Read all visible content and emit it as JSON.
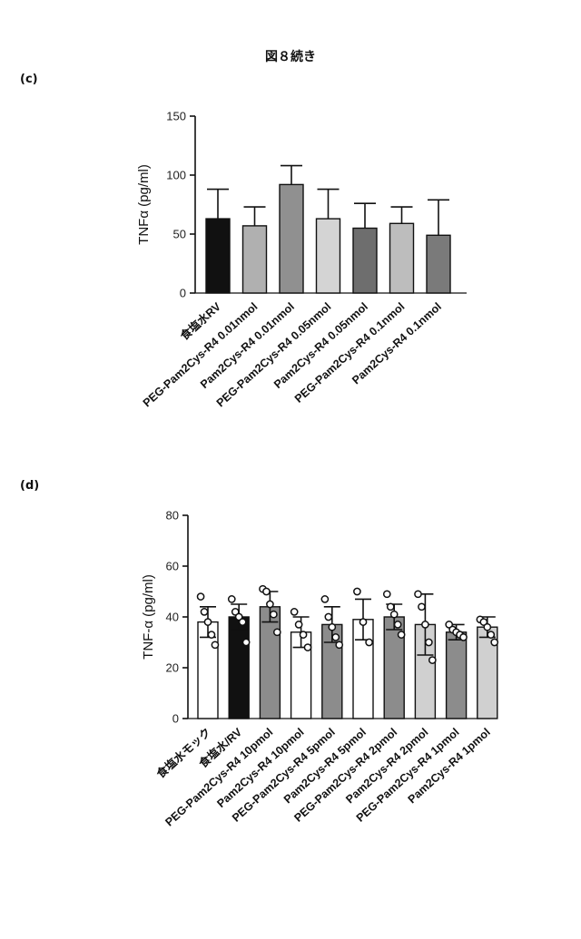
{
  "header": {
    "title": "図８続き"
  },
  "chart_data": [
    {
      "panel_label": "(c)",
      "type": "bar",
      "ylabel": "TNFα (pg/ml)",
      "ylim": [
        0,
        150
      ],
      "yticks": [
        "0",
        "50",
        "100",
        "150"
      ],
      "categories": [
        "食塩水RV",
        "PEG-Pam2Cys-R4 0.01nmol",
        "Pam2Cys-R4 0.01nmol",
        "PEG-Pam2Cys-R4 0.05nmol",
        "Pam2Cys-R4 0.05nmol",
        "PEG-Pam2Cys-R4 0.1nmol",
        "Pam2Cys-R4 0.1nmol"
      ],
      "values": [
        63,
        57,
        92,
        63,
        55,
        59,
        49
      ],
      "errors": [
        25,
        16,
        16,
        25,
        21,
        14,
        30
      ],
      "bar_colors": [
        "#111111",
        "#b0b0b0",
        "#909090",
        "#d4d4d4",
        "#6e6e6e",
        "#bdbdbd",
        "#7a7a7a"
      ]
    },
    {
      "panel_label": "(d)",
      "type": "bar",
      "ylabel": "TNF-α (pg/ml)",
      "ylim": [
        0,
        80
      ],
      "yticks": [
        "0",
        "20",
        "40",
        "60",
        "80"
      ],
      "categories": [
        "食塩水モック",
        "食塩水/RV",
        "PEG-Pam2Cys-R4 10pmol",
        "Pam2Cys-R4 10pmol",
        "PEG-Pam2Cys-R4 5pmol",
        "Pam2Cys-R4 5pmol",
        "PEG-Pam2Cys-R4 2pmol",
        "Pam2Cys-R4 2pmol",
        "PEG-Pam2Cys-R4 1pmol",
        "Pam2Cys-R4 1pmol"
      ],
      "values": [
        38,
        40,
        44,
        34,
        37,
        39,
        40,
        37,
        34,
        36
      ],
      "errors": [
        6,
        5,
        6,
        6,
        7,
        8,
        5,
        12,
        3,
        4
      ],
      "points": [
        [
          48,
          42,
          38,
          33,
          29
        ],
        [
          47,
          42,
          40,
          38,
          30
        ],
        [
          51,
          50,
          45,
          41,
          34
        ],
        [
          42,
          37,
          33,
          28
        ],
        [
          47,
          40,
          36,
          32,
          29
        ],
        [
          50,
          38,
          30
        ],
        [
          49,
          44,
          41,
          37,
          33
        ],
        [
          49,
          44,
          37,
          30,
          23
        ],
        [
          37,
          35,
          34,
          33,
          32
        ],
        [
          39,
          38,
          36,
          33,
          30
        ]
      ],
      "bar_colors": [
        "#ffffff",
        "#111111",
        "#8c8c8c",
        "#ffffff",
        "#8c8c8c",
        "#ffffff",
        "#8c8c8c",
        "#d0d0d0",
        "#8c8c8c",
        "#d0d0d0"
      ]
    }
  ]
}
